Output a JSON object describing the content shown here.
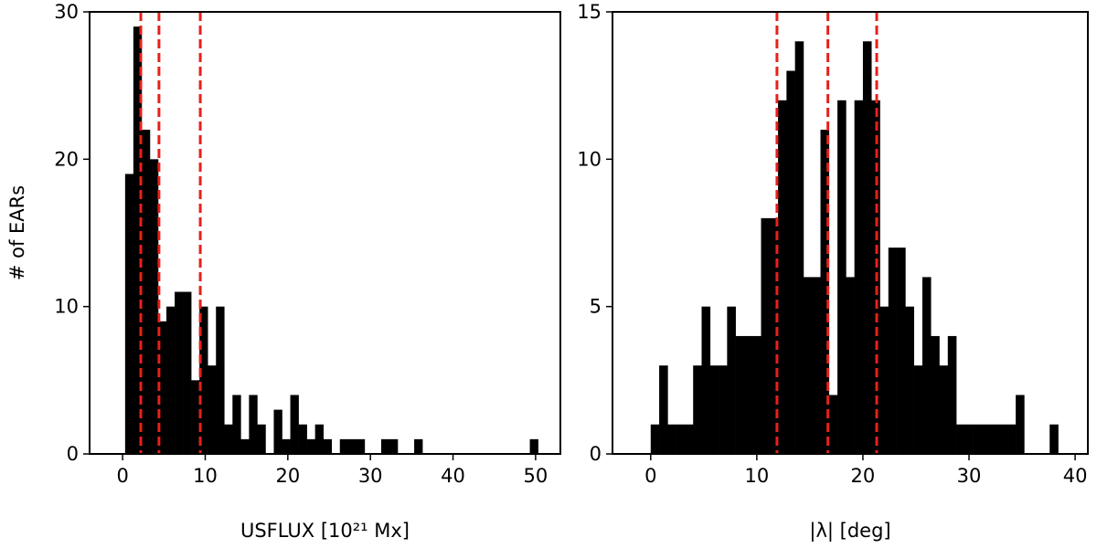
{
  "chart_data": [
    {
      "type": "histogram",
      "xlabel": "USFLUX [10²¹ Mx]",
      "ylabel": "# of EARs",
      "color": "#000000",
      "bins": [
        0.3,
        1.3,
        2.3,
        3.3,
        4.3,
        5.3,
        6.3,
        7.3,
        8.3,
        9.3,
        10.3,
        11.3,
        12.3,
        13.3,
        14.3,
        15.3,
        16.3,
        17.3,
        18.3,
        19.3,
        20.3,
        21.3,
        22.3,
        23.3,
        24.3,
        25.3,
        26.3,
        27.3,
        28.3,
        29.3,
        30.3,
        31.3,
        32.3,
        33.3,
        34.3,
        35.3,
        36.3,
        37.3,
        38.3,
        39.3,
        40.3,
        41.3,
        42.3,
        43.3,
        44.3,
        45.3,
        46.3,
        47.3,
        48.3,
        49.3,
        50.3
      ],
      "counts": [
        19,
        29,
        22,
        20,
        9,
        10,
        11,
        11,
        5,
        10,
        6,
        10,
        2,
        4,
        1,
        4,
        2,
        0,
        3,
        1,
        4,
        2,
        1,
        2,
        1,
        0,
        1,
        1,
        1,
        0,
        0,
        1,
        1,
        0,
        0,
        1,
        0,
        0,
        0,
        0,
        0,
        0,
        0,
        0,
        0,
        0,
        0,
        0,
        0,
        1
      ],
      "vlines": [
        2.2,
        4.4,
        9.4
      ],
      "vline_color": "#e8201a",
      "xlim": [
        -4,
        53
      ],
      "ylim": [
        0,
        30
      ],
      "xticks": [
        0,
        10,
        20,
        30,
        40,
        50
      ],
      "yticks": [
        0,
        10,
        20,
        30
      ]
    },
    {
      "type": "histogram",
      "xlabel": "|λ| [deg]",
      "color": "#000000",
      "bins": [
        0,
        0.8,
        1.6,
        2.4,
        3.2,
        4.0,
        4.8,
        5.6,
        6.4,
        7.2,
        8.0,
        8.8,
        9.6,
        10.4,
        11.2,
        12.0,
        12.8,
        13.6,
        14.4,
        15.2,
        16.0,
        16.8,
        17.6,
        18.4,
        19.2,
        20.0,
        20.8,
        21.6,
        22.4,
        23.2,
        24.0,
        24.8,
        25.6,
        26.4,
        27.2,
        28.0,
        28.8,
        29.6,
        30.4,
        31.2,
        32.0,
        32.8,
        33.6,
        34.4,
        35.2,
        36.0,
        36.8,
        37.6,
        38.4
      ],
      "counts": [
        1,
        3,
        1,
        1,
        1,
        3,
        5,
        3,
        3,
        5,
        4,
        4,
        4,
        8,
        8,
        12,
        13,
        14,
        6,
        6,
        11,
        2,
        12,
        6,
        12,
        14,
        12,
        5,
        7,
        7,
        5,
        3,
        6,
        4,
        3,
        4,
        1,
        1,
        1,
        1,
        1,
        1,
        1,
        2,
        0,
        0,
        0,
        1
      ],
      "vlines": [
        11.9,
        16.7,
        21.3
      ],
      "vline_color": "#e8201a",
      "xlim": [
        -3.6,
        41.2
      ],
      "ylim": [
        0,
        15
      ],
      "xticks": [
        0,
        10,
        20,
        30,
        40
      ],
      "yticks": [
        0,
        5,
        10,
        15
      ]
    }
  ]
}
